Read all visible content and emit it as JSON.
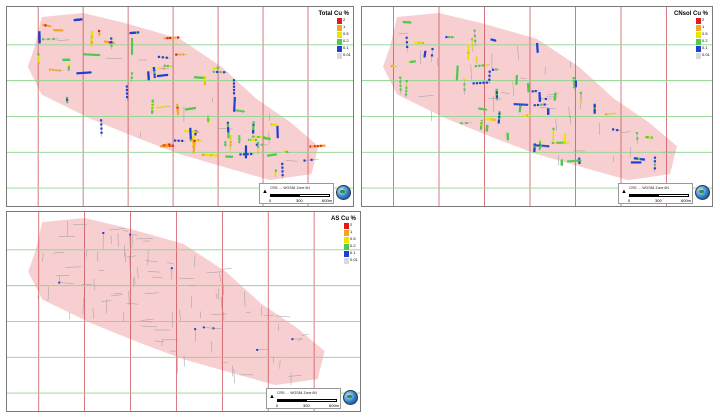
{
  "maps": [
    {
      "legend_title": "Total Cu %",
      "drill_density": 3,
      "legend": [
        {
          "label": "2",
          "color": "#e31a1c"
        },
        {
          "label": "1",
          "color": "#f5a623"
        },
        {
          "label": "0.5",
          "color": "#e6e600"
        },
        {
          "label": "0.2",
          "color": "#4fc94f"
        },
        {
          "label": "0.1",
          "color": "#1f3fd6"
        },
        {
          "label": "0.01",
          "color": "#d9d9d9"
        }
      ],
      "crs_text": "CRS: ... WGS84 Zone 6N",
      "scale_labels": [
        "0",
        "300",
        "600m"
      ]
    },
    {
      "legend_title": "CNsol Cu %",
      "drill_density": 2,
      "legend": [
        {
          "label": "2",
          "color": "#e31a1c"
        },
        {
          "label": "1",
          "color": "#f5a623"
        },
        {
          "label": "0.5",
          "color": "#e6e600"
        },
        {
          "label": "0.2",
          "color": "#4fc94f"
        },
        {
          "label": "0.1",
          "color": "#1f3fd6"
        },
        {
          "label": "0.01",
          "color": "#d9d9d9"
        }
      ],
      "crs_text": "CRS: ... WGS84 Zone 6N",
      "scale_labels": [
        "0",
        "300",
        "600m"
      ]
    },
    {
      "legend_title": "AS Cu %",
      "drill_density": 0,
      "legend": [
        {
          "label": "2",
          "color": "#e31a1c"
        },
        {
          "label": "1",
          "color": "#f5a623"
        },
        {
          "label": "0.5",
          "color": "#e6e600"
        },
        {
          "label": "0.2",
          "color": "#4fc94f"
        },
        {
          "label": "0.1",
          "color": "#1f3fd6"
        },
        {
          "label": "0.01",
          "color": "#d9d9d9"
        }
      ],
      "crs_text": "CRS: ... WGS84 Zone 6N",
      "scale_labels": [
        "0",
        "300",
        "600m"
      ]
    }
  ],
  "colors": {
    "deposit_outline": "#f8cfd0",
    "easting_line": "#c8414b",
    "northing_line": "#8fd48f",
    "barren_trace": "#9a9a9a"
  }
}
